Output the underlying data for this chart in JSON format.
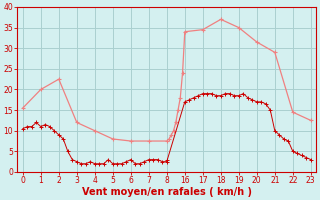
{
  "xlabel": "Vent moyen/en rafales ( km/h )",
  "xlabel_color": "#cc0000",
  "bg_color": "#d4f0f0",
  "grid_color": "#aacfcf",
  "axis_color": "#cc0000",
  "tick_color": "#cc0000",
  "ylim": [
    0,
    40
  ],
  "yticks": [
    0,
    5,
    10,
    15,
    20,
    25,
    30,
    35,
    40
  ],
  "wind_avg_hour": [
    0,
    0.25,
    0.5,
    0.75,
    1,
    1.25,
    1.5,
    1.75,
    2,
    2.25,
    2.5,
    2.75,
    3,
    3.25,
    3.5,
    3.75,
    4,
    4.25,
    4.5,
    4.75,
    5,
    5.25,
    5.5,
    5.75,
    6,
    6.25,
    6.5,
    6.75,
    7,
    7.25,
    7.5,
    7.75,
    8,
    8.25,
    16,
    16.25,
    16.5,
    16.75,
    17,
    17.25,
    17.5,
    17.75,
    18,
    18.25,
    18.5,
    18.75,
    19,
    19.25,
    19.5,
    19.75,
    20,
    20.25,
    20.5,
    20.75,
    21,
    21.25,
    21.5,
    21.75,
    22,
    22.25,
    22.5,
    22.75,
    23
  ],
  "wind_avg_y": [
    10.5,
    11,
    11,
    12,
    11,
    11.5,
    11,
    10,
    9,
    8,
    5,
    3,
    2.5,
    2,
    2,
    2.5,
    2,
    2,
    2,
    3,
    2,
    2,
    2,
    2.5,
    3,
    2,
    2,
    2.5,
    3,
    3,
    3,
    2.5,
    2.5,
    3,
    17,
    17.5,
    18,
    18.5,
    19,
    19,
    19,
    18.5,
    18.5,
    19,
    19,
    18.5,
    18.5,
    19,
    18,
    17.5,
    17,
    17,
    16.5,
    15,
    10,
    9,
    8,
    7.5,
    5,
    4.5,
    4,
    3.5,
    3
  ],
  "wind_gust_hour": [
    0,
    1,
    2,
    3,
    4,
    5,
    6,
    7,
    8,
    9,
    10,
    11,
    12,
    13,
    14,
    15,
    16,
    17,
    18,
    19,
    20,
    21,
    22,
    23
  ],
  "wind_gust_y": [
    15.5,
    20,
    22.5,
    12,
    10,
    8,
    7.5,
    7.5,
    7.5,
    8,
    9,
    10,
    12,
    15,
    18,
    24,
    34,
    34.5,
    37,
    35,
    31.5,
    29,
    14.5,
    12.5
  ],
  "wind_avg_color": "#cc0000",
  "wind_gust_color": "#f08080",
  "xlabel_fontsize": 7,
  "tick_fontsize": 5.5
}
